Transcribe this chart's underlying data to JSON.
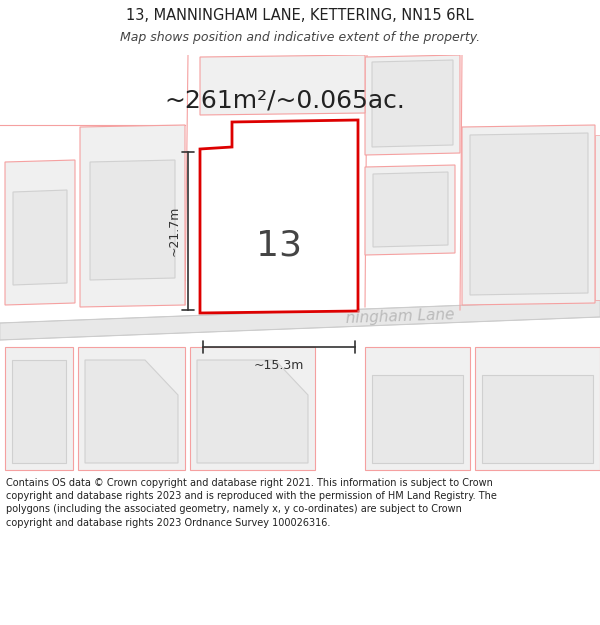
{
  "title_line1": "13, MANNINGHAM LANE, KETTERING, NN15 6RL",
  "title_line2": "Map shows position and indicative extent of the property.",
  "area_text": "~261m²/~0.065ac.",
  "width_label": "~15.3m",
  "height_label": "~21.7m",
  "number_label": "13",
  "street_label": "ningham Lane",
  "footer_text": "Contains OS data © Crown copyright and database right 2021. This information is subject to Crown copyright and database rights 2023 and is reproduced with the permission of HM Land Registry. The polygons (including the associated geometry, namely x, y co-ordinates) are subject to Crown copyright and database rights 2023 Ordnance Survey 100026316.",
  "bg_color": "#ffffff",
  "lc": "#f5a0a0",
  "lf": "#f0f0f0",
  "gc": "#d0d0d0",
  "gf": "#e8e8e8",
  "main_edge": "#dd0000",
  "main_fill": "#ffffff",
  "dim_color": "#333333",
  "road_fill": "#e8e8e8",
  "road_line": "#cccccc",
  "street_color": "#bbbbbb",
  "title_color": "#222222",
  "footer_color": "#222222"
}
